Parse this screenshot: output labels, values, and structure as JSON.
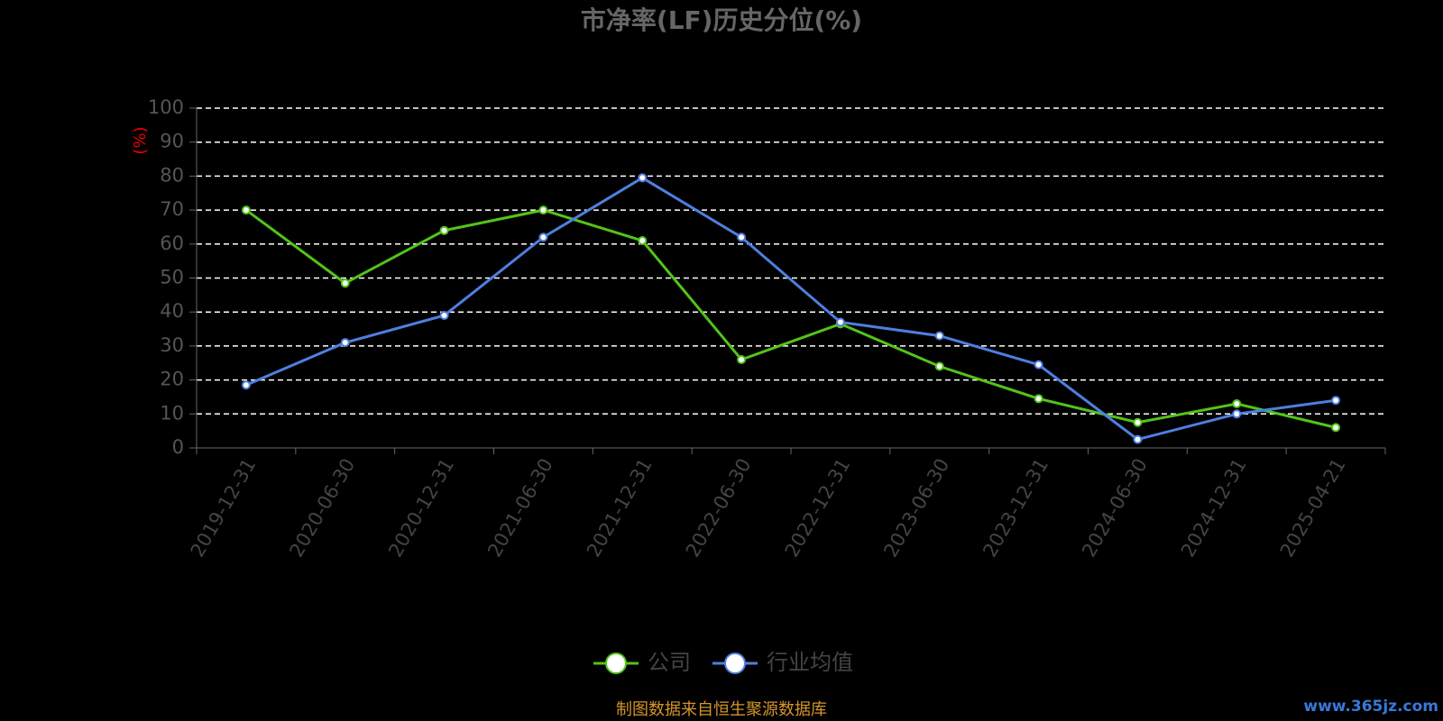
{
  "chart_data": {
    "type": "line",
    "title": "市净率(LF)历史分位(%)",
    "y_label": "(%)",
    "categories": [
      "2019-12-31",
      "2020-06-30",
      "2020-12-31",
      "2021-06-30",
      "2021-12-31",
      "2022-06-30",
      "2022-12-31",
      "2023-06-30",
      "2023-12-31",
      "2024-06-30",
      "2024-12-31",
      "2025-04-21"
    ],
    "series": [
      {
        "name": "公司",
        "color": "#52c41a",
        "values": [
          70,
          48.5,
          64,
          70,
          61,
          26,
          36.5,
          24,
          14.5,
          7.5,
          13,
          6
        ]
      },
      {
        "name": "行业均值",
        "color": "#4e7fe0",
        "values": [
          18.5,
          31,
          39,
          62,
          79.5,
          62,
          37,
          33,
          24.5,
          2.5,
          10,
          14
        ]
      }
    ],
    "ylim": [
      0,
      100
    ],
    "yticks": [
      0,
      10,
      20,
      30,
      40,
      50,
      60,
      70,
      80,
      90,
      100
    ],
    "grid": true,
    "source": "制图数据来自恒生聚源数据库",
    "watermark": "www.365jz.com"
  }
}
